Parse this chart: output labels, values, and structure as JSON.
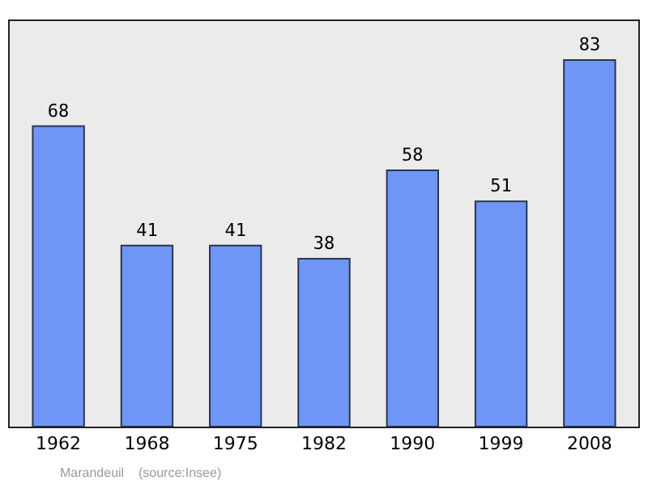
{
  "chart_data": {
    "type": "bar",
    "categories": [
      "1962",
      "1968",
      "1975",
      "1982",
      "1990",
      "1999",
      "2008"
    ],
    "values": [
      68,
      41,
      41,
      38,
      58,
      51,
      83
    ],
    "color": "#6f96f7",
    "data_labels": true,
    "annotations": [
      "Marandeuil    (source:Insee)"
    ]
  }
}
